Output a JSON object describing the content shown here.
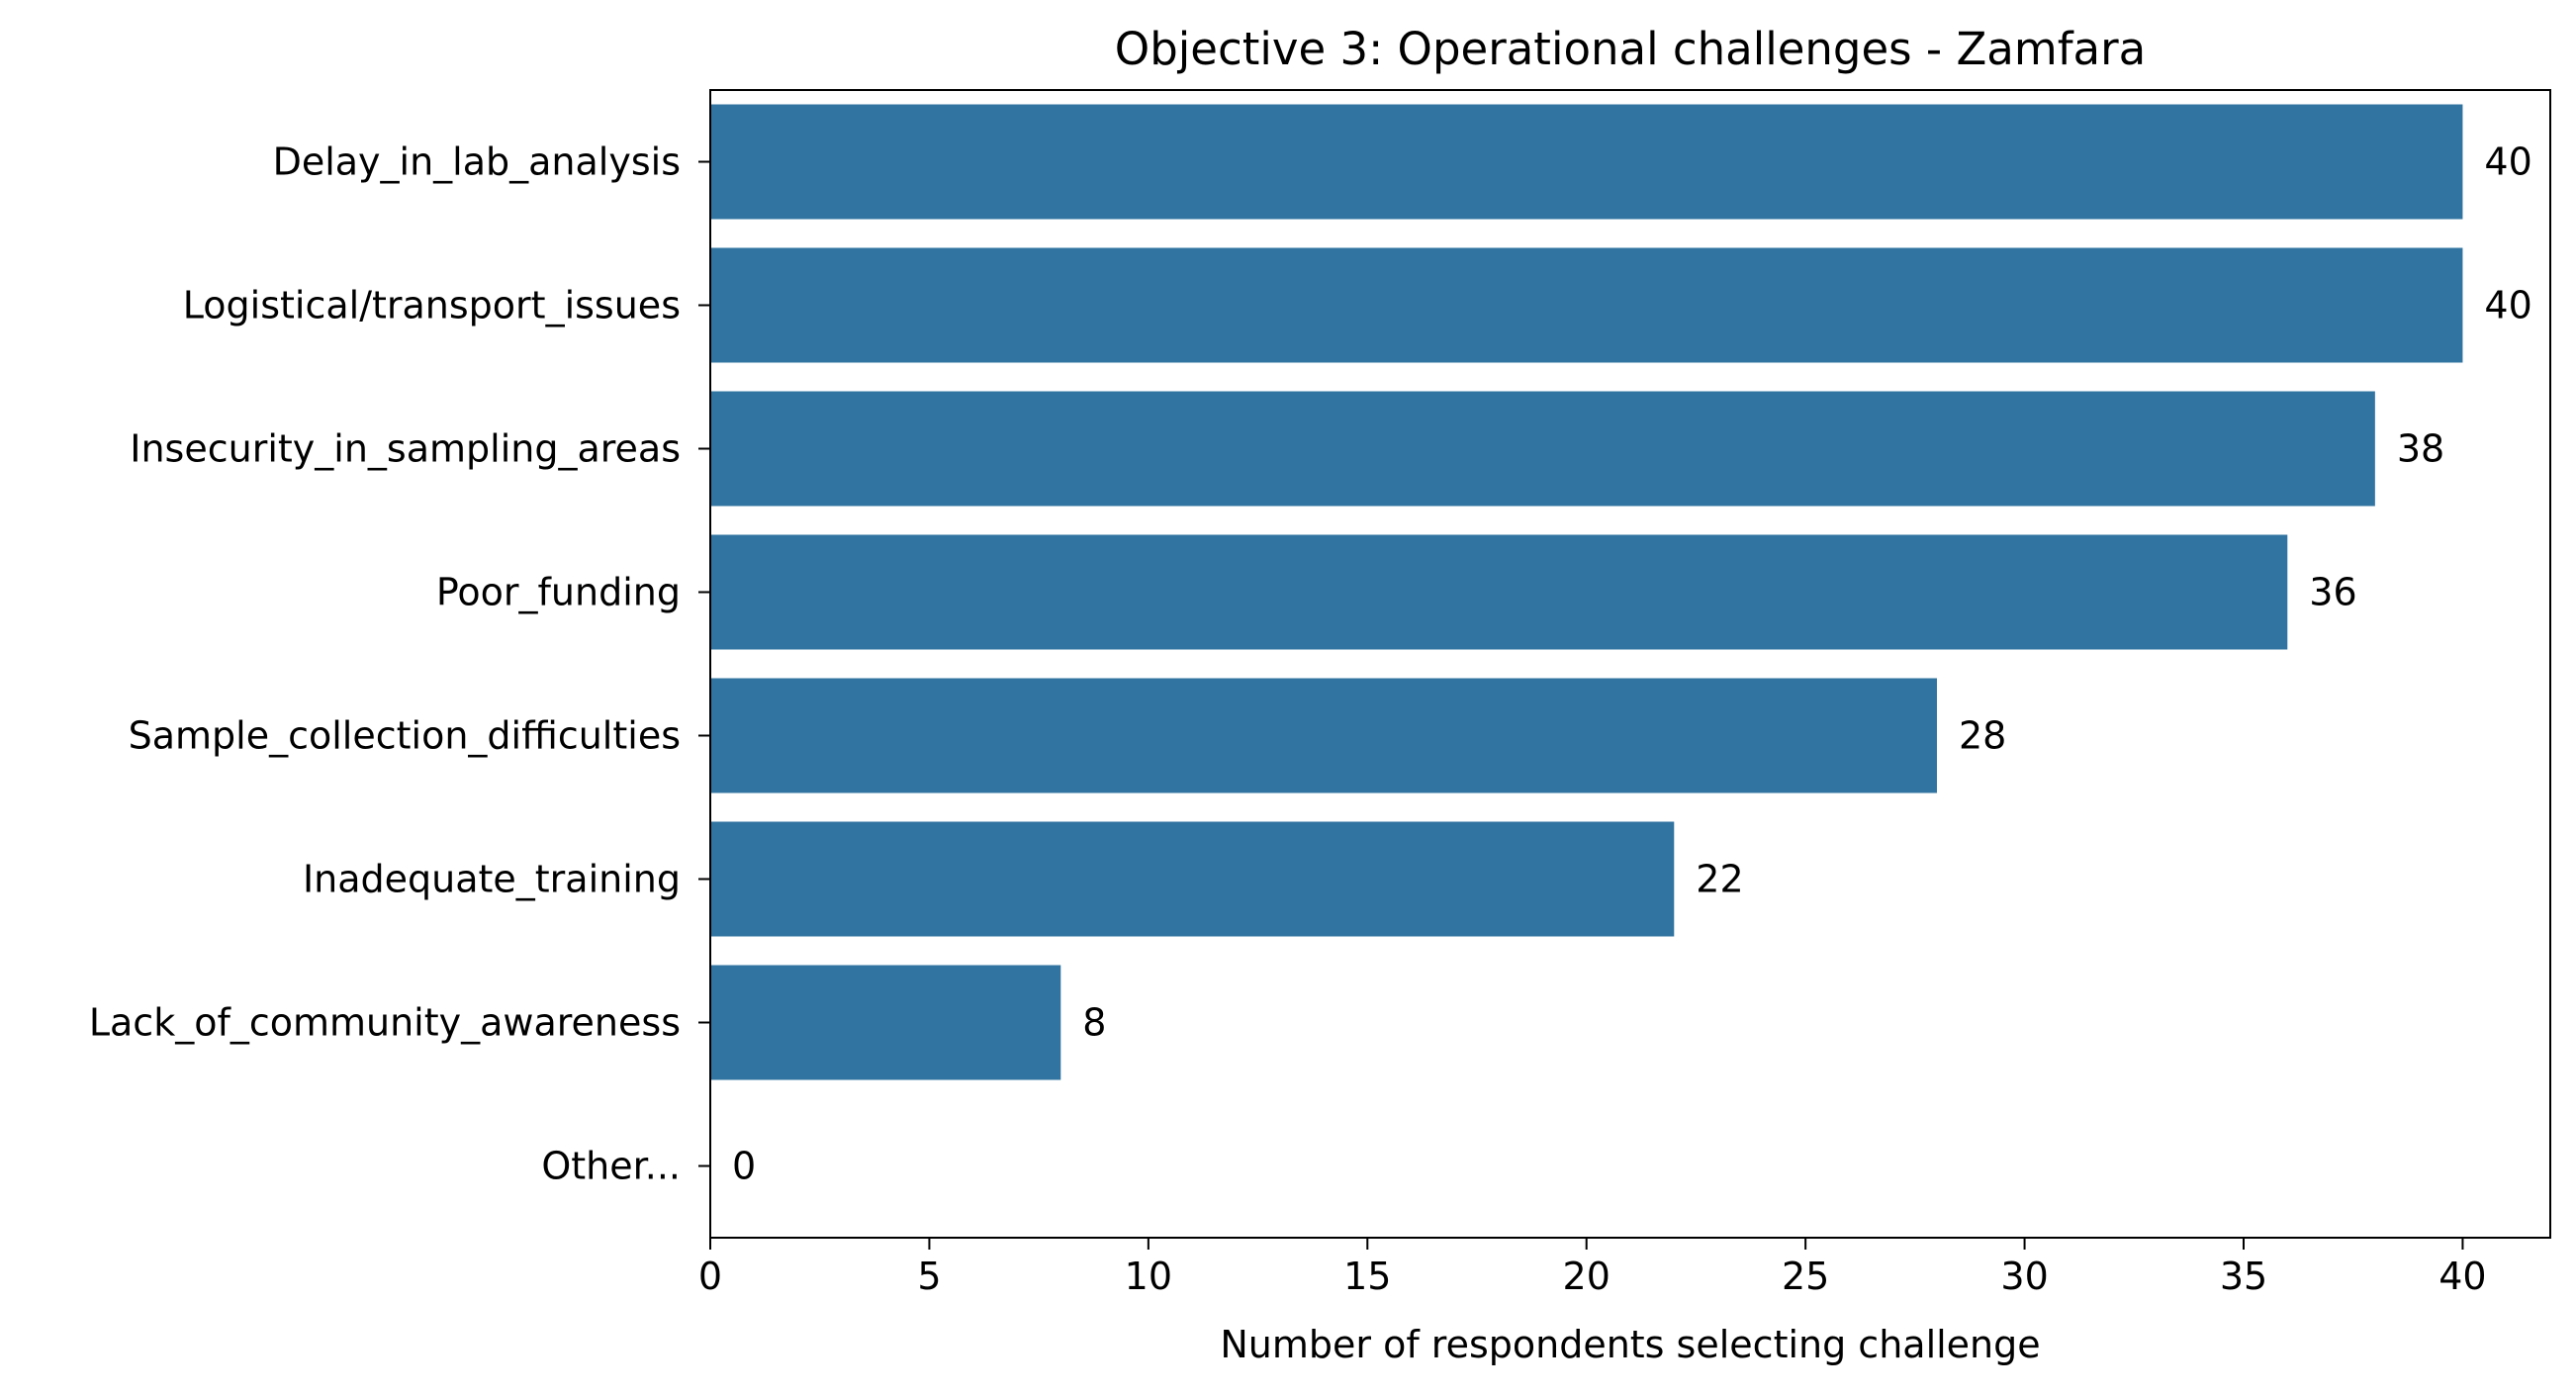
{
  "chart_data": {
    "type": "bar",
    "orientation": "horizontal",
    "title": "Objective 3: Operational challenges - Zamfara",
    "xlabel": "Number of respondents selecting challenge",
    "ylabel": "",
    "categories": [
      "Delay_in_lab_analysis",
      "Logistical/transport_issues",
      "Insecurity_in_sampling_areas",
      "Poor_funding",
      "Sample_collection_difficulties",
      "Inadequate_training",
      "Lack_of_community_awareness",
      "Other..."
    ],
    "values": [
      40,
      40,
      38,
      36,
      28,
      22,
      8,
      0
    ],
    "data_labels": [
      "40",
      "40",
      "38",
      "36",
      "28",
      "22",
      "8",
      "0"
    ],
    "xlim": [
      0,
      42
    ],
    "xticks": [
      0,
      5,
      10,
      15,
      20,
      25,
      30,
      35,
      40
    ],
    "xtick_labels": [
      "0",
      "5",
      "10",
      "15",
      "20",
      "25",
      "30",
      "35",
      "40"
    ],
    "grid": false,
    "legend": "none",
    "colors": {
      "bar": "#3274a1",
      "axis": "#000000",
      "text": "#000000",
      "background": "#ffffff"
    }
  }
}
